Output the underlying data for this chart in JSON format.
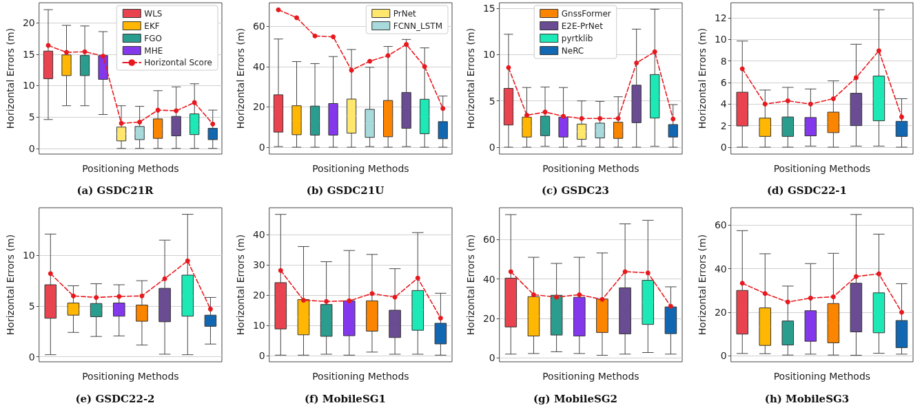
{
  "chart_data": [
    {
      "type": "box",
      "title": "(a) GSDC21R",
      "xlabel": "Positioning Methods",
      "ylabel": "Horizontal Errors (m)",
      "categories": [
        null,
        null,
        null,
        null,
        null,
        null,
        null,
        null,
        null,
        null
      ],
      "ylim": [
        -0.9,
        23.2
      ],
      "yticks": [
        0,
        5,
        10,
        15,
        20
      ],
      "grid": "y",
      "legend": "top right",
      "marker": "circle",
      "line_style": "dashed",
      "series": [
        {
          "name": "WLS",
          "color": "#e8434f",
          "boxes": [
            {
              "low": 4.6,
              "q1": 11.1,
              "median": 13.3,
              "q3": 15.5,
              "high": 22.1
            },
            null,
            null,
            null,
            null,
            null,
            null,
            null,
            null,
            null
          ]
        },
        {
          "name": "EKF",
          "color": "#ffb703",
          "boxes": [
            null,
            {
              "low": 6.8,
              "q1": 11.6,
              "median": 13.2,
              "q3": 14.9,
              "high": 19.6
            },
            null,
            null,
            null,
            null,
            null,
            null,
            null,
            null
          ]
        },
        {
          "name": "FGO",
          "color": "#2a9d8f",
          "boxes": [
            null,
            null,
            {
              "low": 6.8,
              "q1": 11.6,
              "median": 13.2,
              "q3": 14.8,
              "high": 19.5
            },
            null,
            null,
            null,
            null,
            null,
            null,
            null
          ]
        },
        {
          "name": "MHE",
          "color": "#8338ec",
          "boxes": [
            null,
            null,
            null,
            {
              "low": 5.4,
              "q1": 11.0,
              "median": 12.9,
              "q3": 14.8,
              "high": 18.6
            },
            null,
            null,
            null,
            null,
            null,
            null
          ]
        },
        {
          "color": "#ffe66d",
          "boxes": [
            null,
            null,
            null,
            null,
            {
              "low": 0,
              "q1": 1.2,
              "median": 2.3,
              "q3": 3.4,
              "high": 6.8
            },
            null,
            null,
            null,
            null,
            null
          ]
        },
        {
          "color": "#a8dadc",
          "boxes": [
            null,
            null,
            null,
            null,
            null,
            {
              "low": 0,
              "q1": 1.4,
              "median": 2.4,
              "q3": 3.5,
              "high": 6.7
            },
            null,
            null,
            null,
            null
          ]
        },
        {
          "color": "#fb8500",
          "boxes": [
            null,
            null,
            null,
            null,
            null,
            null,
            {
              "low": 0,
              "q1": 1.6,
              "median": 3.1,
              "q3": 4.7,
              "high": 9.2
            },
            null,
            null,
            null
          ]
        },
        {
          "color": "#6a4c93",
          "boxes": [
            null,
            null,
            null,
            null,
            null,
            null,
            null,
            {
              "low": 0,
              "q1": 2.0,
              "median": 3.5,
              "q3": 5.1,
              "high": 9.8
            },
            null,
            null
          ]
        },
        {
          "color": "#1de9b6",
          "boxes": [
            null,
            null,
            null,
            null,
            null,
            null,
            null,
            null,
            {
              "low": 0,
              "q1": 2.2,
              "median": 3.8,
              "q3": 5.5,
              "high": 10.3
            },
            null
          ]
        },
        {
          "color": "#1167b1",
          "boxes": [
            null,
            null,
            null,
            null,
            null,
            null,
            null,
            null,
            null,
            {
              "low": 0,
              "q1": 1.4,
              "median": 2.3,
              "q3": 3.2,
              "high": 6.1
            }
          ]
        },
        {
          "name": "Horizontal Score",
          "type": "line",
          "color": "#e8191e",
          "values": [
            16.4,
            15.3,
            15.4,
            14.7,
            4.0,
            4.2,
            6.1,
            6.0,
            7.3,
            3.9
          ]
        }
      ]
    },
    {
      "type": "box",
      "title": "(b) GSDC21U",
      "xlabel": "Positioning Methods",
      "ylabel": "Horizontal Errors (m)",
      "categories": [
        null,
        null,
        null,
        null,
        null,
        null,
        null,
        null,
        null,
        null
      ],
      "ylim": [
        -3.4,
        71.7
      ],
      "yticks": [
        0,
        20,
        40,
        60
      ],
      "grid": "y",
      "legend": "top right",
      "marker": "circle",
      "line_style": "dashed",
      "series": [
        {
          "color": "#e8434f",
          "boxes": [
            {
              "low": 0.3,
              "q1": 7.5,
              "median": 16.7,
              "q3": 26.0,
              "high": 53.7
            },
            null,
            null,
            null,
            null,
            null,
            null,
            null,
            null,
            null
          ]
        },
        {
          "color": "#ffb703",
          "boxes": [
            null,
            {
              "low": 0,
              "q1": 6.2,
              "median": 13.4,
              "q3": 20.6,
              "high": 42.5
            },
            null,
            null,
            null,
            null,
            null,
            null,
            null,
            null
          ]
        },
        {
          "color": "#2a9d8f",
          "boxes": [
            null,
            null,
            {
              "low": 0,
              "q1": 6.0,
              "median": 13.2,
              "q3": 20.4,
              "high": 41.5
            },
            null,
            null,
            null,
            null,
            null,
            null,
            null
          ]
        },
        {
          "color": "#8338ec",
          "boxes": [
            null,
            null,
            null,
            {
              "low": 0,
              "q1": 6.0,
              "median": 13.8,
              "q3": 21.7,
              "high": 45.0
            },
            null,
            null,
            null,
            null,
            null,
            null
          ]
        },
        {
          "name": "PrNet",
          "color": "#ffe66d",
          "boxes": [
            null,
            null,
            null,
            null,
            {
              "low": 0,
              "q1": 7.0,
              "median": 15.4,
              "q3": 23.9,
              "high": 48.5
            },
            null,
            null,
            null,
            null,
            null
          ]
        },
        {
          "name": "FCNN_LSTM",
          "color": "#a8dadc",
          "boxes": [
            null,
            null,
            null,
            null,
            null,
            {
              "low": 0.3,
              "q1": 4.9,
              "median": 11.8,
              "q3": 18.8,
              "high": 39.7
            },
            null,
            null,
            null,
            null
          ]
        },
        {
          "color": "#fb8500",
          "boxes": [
            null,
            null,
            null,
            null,
            null,
            null,
            {
              "low": 0,
              "q1": 5.2,
              "median": 14.2,
              "q3": 23.2,
              "high": 50.0
            },
            null,
            null,
            null
          ]
        },
        {
          "color": "#6a4c93",
          "boxes": [
            null,
            null,
            null,
            null,
            null,
            null,
            null,
            {
              "low": 0.3,
              "q1": 9.4,
              "median": 18.3,
              "q3": 27.2,
              "high": 53.5
            },
            null,
            null
          ]
        },
        {
          "color": "#1de9b6",
          "boxes": [
            null,
            null,
            null,
            null,
            null,
            null,
            null,
            null,
            {
              "low": 0,
              "q1": 6.7,
              "median": 15.2,
              "q3": 23.8,
              "high": 49.3
            },
            null
          ]
        },
        {
          "color": "#1167b1",
          "boxes": [
            null,
            null,
            null,
            null,
            null,
            null,
            null,
            null,
            null,
            {
              "low": 0,
              "q1": 4.2,
              "median": 8.4,
              "q3": 12.7,
              "high": 25.4
            }
          ]
        },
        {
          "type": "line",
          "color": "#e8191e",
          "values": [
            68.2,
            64.3,
            55.2,
            54.8,
            38.2,
            42.7,
            45.5,
            51.0,
            40.0,
            19.2
          ]
        }
      ]
    },
    {
      "type": "box",
      "title": "(c) GSDC23",
      "xlabel": "Positioning Methods",
      "ylabel": "Horizontal Errors (m)",
      "categories": [
        null,
        null,
        null,
        null,
        null,
        null,
        null,
        null,
        null,
        null
      ],
      "ylim": [
        -0.74,
        15.6
      ],
      "yticks": [
        0,
        5,
        10,
        15
      ],
      "grid": "y",
      "legend": "top",
      "marker": "circle",
      "line_style": "dashed",
      "series": [
        {
          "color": "#e8434f",
          "boxes": [
            {
              "low": 0,
              "q1": 2.4,
              "median": 4.4,
              "q3": 6.35,
              "high": 12.2
            },
            null,
            null,
            null,
            null,
            null,
            null,
            null,
            null,
            null
          ]
        },
        {
          "color": "#ffb703",
          "boxes": [
            null,
            {
              "low": 0,
              "q1": 1.1,
              "median": 2.2,
              "q3": 3.25,
              "high": 6.45
            },
            null,
            null,
            null,
            null,
            null,
            null,
            null,
            null
          ]
        },
        {
          "color": "#2a9d8f",
          "boxes": [
            null,
            null,
            {
              "low": 0.1,
              "q1": 1.25,
              "median": 2.3,
              "q3": 3.35,
              "high": 6.5
            },
            null,
            null,
            null,
            null,
            null,
            null,
            null
          ]
        },
        {
          "color": "#8338ec",
          "boxes": [
            null,
            null,
            null,
            {
              "low": 0,
              "q1": 1.1,
              "median": 2.2,
              "q3": 3.25,
              "high": 6.45
            },
            null,
            null,
            null,
            null,
            null,
            null
          ]
        },
        {
          "color": "#ffe66d",
          "boxes": [
            null,
            null,
            null,
            null,
            {
              "low": 0.1,
              "q1": 0.85,
              "median": 1.7,
              "q3": 2.5,
              "high": 5.0
            },
            null,
            null,
            null,
            null,
            null
          ]
        },
        {
          "color": "#a8dadc",
          "boxes": [
            null,
            null,
            null,
            null,
            null,
            {
              "low": 0,
              "q1": 1.0,
              "median": 1.8,
              "q3": 2.6,
              "high": 4.95
            },
            null,
            null,
            null,
            null
          ]
        },
        {
          "name": "GnssFormer",
          "color": "#fb8500",
          "boxes": [
            null,
            null,
            null,
            null,
            null,
            null,
            {
              "low": 0,
              "q1": 0.95,
              "median": 1.8,
              "q3": 2.7,
              "high": 5.45
            },
            null,
            null,
            null
          ]
        },
        {
          "name": "E2E-PrNet",
          "color": "#6a4c93",
          "boxes": [
            null,
            null,
            null,
            null,
            null,
            null,
            null,
            {
              "low": 0,
              "q1": 2.65,
              "median": 4.7,
              "q3": 6.7,
              "high": 12.75
            },
            null,
            null
          ]
        },
        {
          "name": "pyrtklib",
          "color": "#1de9b6",
          "boxes": [
            null,
            null,
            null,
            null,
            null,
            null,
            null,
            null,
            {
              "low": 0.1,
              "q1": 3.15,
              "median": 5.5,
              "q3": 7.85,
              "high": 14.9
            },
            null
          ]
        },
        {
          "name": "NeRC",
          "color": "#1167b1",
          "boxes": [
            null,
            null,
            null,
            null,
            null,
            null,
            null,
            null,
            null,
            {
              "low": 0,
              "q1": 1.1,
              "median": 1.8,
              "q3": 2.45,
              "high": 4.6
            }
          ]
        },
        {
          "type": "line",
          "color": "#e8191e",
          "values": [
            8.6,
            3.45,
            3.8,
            3.35,
            3.1,
            3.1,
            3.1,
            9.1,
            10.3,
            3.05
          ]
        }
      ]
    },
    {
      "type": "box",
      "title": "(d) GSDC22-1",
      "xlabel": "Positioning Methods",
      "ylabel": "Horizontal Errors (m)",
      "categories": [
        null,
        null,
        null,
        null,
        null,
        null,
        null,
        null
      ],
      "ylim": [
        -0.64,
        13.4
      ],
      "yticks": [
        0,
        2,
        4,
        6,
        8,
        10,
        12
      ],
      "grid": "y",
      "marker": "circle",
      "line_style": "dashed",
      "series": [
        {
          "color": "#e8434f",
          "boxes": [
            {
              "low": 0,
              "q1": 1.97,
              "median": 3.5,
              "q3": 5.1,
              "high": 9.85
            },
            null,
            null,
            null,
            null,
            null,
            null,
            null
          ]
        },
        {
          "color": "#ffb703",
          "boxes": [
            null,
            {
              "low": 0,
              "q1": 1.0,
              "median": 1.85,
              "q3": 2.7,
              "high": 5.3
            },
            null,
            null,
            null,
            null,
            null,
            null
          ]
        },
        {
          "color": "#2a9d8f",
          "boxes": [
            null,
            null,
            {
              "low": 0,
              "q1": 1.0,
              "median": 1.9,
              "q3": 2.8,
              "high": 5.55
            },
            null,
            null,
            null,
            null,
            null
          ]
        },
        {
          "color": "#8338ec",
          "boxes": [
            null,
            null,
            null,
            {
              "low": 0.1,
              "q1": 1.05,
              "median": 1.9,
              "q3": 2.75,
              "high": 5.4
            },
            null,
            null,
            null,
            null
          ]
        },
        {
          "color": "#fb8500",
          "boxes": [
            null,
            null,
            null,
            null,
            {
              "low": 0,
              "q1": 1.35,
              "median": 2.3,
              "q3": 3.25,
              "high": 6.15
            },
            null,
            null,
            null
          ]
        },
        {
          "color": "#6a4c93",
          "boxes": [
            null,
            null,
            null,
            null,
            null,
            {
              "low": 0.1,
              "q1": 2.0,
              "median": 3.5,
              "q3": 5.0,
              "high": 9.55
            },
            null,
            null
          ]
        },
        {
          "color": "#1de9b6",
          "boxes": [
            null,
            null,
            null,
            null,
            null,
            null,
            {
              "low": 0.1,
              "q1": 2.45,
              "median": 4.5,
              "q3": 6.6,
              "high": 12.75
            },
            null
          ]
        },
        {
          "color": "#1167b1",
          "boxes": [
            null,
            null,
            null,
            null,
            null,
            null,
            null,
            {
              "low": 0,
              "q1": 1.0,
              "median": 1.7,
              "q3": 2.4,
              "high": 4.5
            }
          ]
        },
        {
          "type": "line",
          "color": "#e8191e",
          "values": [
            7.27,
            4.0,
            4.3,
            4.0,
            4.5,
            6.45,
            8.95,
            2.8
          ]
        }
      ]
    },
    {
      "type": "box",
      "title": "(e) GSDC22-2",
      "xlabel": "Positioning Methods",
      "ylabel": "Horizontal Errors (m)",
      "categories": [
        null,
        null,
        null,
        null,
        null,
        null,
        null,
        null
      ],
      "ylim": [
        -0.5,
        14.7
      ],
      "yticks": [
        0,
        5,
        10
      ],
      "grid": "y",
      "marker": "circle",
      "line_style": "dashed",
      "series": [
        {
          "color": "#e8434f",
          "boxes": [
            {
              "low": 0.2,
              "q1": 3.8,
              "median": 5.45,
              "q3": 7.1,
              "high": 12.1
            },
            null,
            null,
            null,
            null,
            null,
            null,
            null
          ]
        },
        {
          "color": "#ffb703",
          "boxes": [
            null,
            {
              "low": 2.4,
              "q1": 4.1,
              "median": 4.7,
              "q3": 5.3,
              "high": 7.0
            },
            null,
            null,
            null,
            null,
            null,
            null
          ]
        },
        {
          "color": "#2a9d8f",
          "boxes": [
            null,
            null,
            {
              "low": 2.0,
              "q1": 3.95,
              "median": 4.6,
              "q3": 5.25,
              "high": 7.2
            },
            null,
            null,
            null,
            null,
            null
          ]
        },
        {
          "color": "#8338ec",
          "boxes": [
            null,
            null,
            null,
            {
              "low": 2.05,
              "q1": 4.0,
              "median": 4.65,
              "q3": 5.3,
              "high": 7.1
            },
            null,
            null,
            null,
            null
          ]
        },
        {
          "color": "#fb8500",
          "boxes": [
            null,
            null,
            null,
            null,
            {
              "low": 1.15,
              "q1": 3.5,
              "median": 4.3,
              "q3": 5.1,
              "high": 7.5
            },
            null,
            null,
            null
          ]
        },
        {
          "color": "#6a4c93",
          "boxes": [
            null,
            null,
            null,
            null,
            null,
            {
              "low": 0.25,
              "q1": 3.45,
              "median": 5.1,
              "q3": 6.75,
              "high": 11.5
            },
            null,
            null
          ]
        },
        {
          "color": "#1de9b6",
          "boxes": [
            null,
            null,
            null,
            null,
            null,
            null,
            {
              "low": 0.2,
              "q1": 4.0,
              "median": 6.0,
              "q3": 8.05,
              "high": 14.05
            },
            null
          ]
        },
        {
          "color": "#1167b1",
          "boxes": [
            null,
            null,
            null,
            null,
            null,
            null,
            null,
            {
              "low": 1.25,
              "q1": 3.0,
              "median": 3.55,
              "q3": 4.1,
              "high": 5.85
            }
          ]
        },
        {
          "type": "line",
          "color": "#e8191e",
          "values": [
            8.2,
            6.0,
            5.85,
            5.95,
            6.0,
            7.7,
            9.45,
            4.7
          ]
        }
      ]
    },
    {
      "type": "box",
      "title": "(f) MobileSG1",
      "xlabel": "Positioning Methods",
      "ylabel": "Horizontal Errors (m)",
      "categories": [
        null,
        null,
        null,
        null,
        null,
        null,
        null,
        null
      ],
      "ylim": [
        -2.0,
        48.8
      ],
      "yticks": [
        0,
        10,
        20,
        30,
        40
      ],
      "grid": "y",
      "marker": "circle",
      "line_style": "dashed",
      "series": [
        {
          "color": "#e8434f",
          "boxes": [
            {
              "low": 0.2,
              "q1": 8.85,
              "median": 16.5,
              "q3": 24.1,
              "high": 46.6
            },
            null,
            null,
            null,
            null,
            null,
            null,
            null
          ]
        },
        {
          "color": "#ffb703",
          "boxes": [
            null,
            {
              "low": 0.2,
              "q1": 6.9,
              "median": 12.7,
              "q3": 18.5,
              "high": 36.0
            },
            null,
            null,
            null,
            null,
            null,
            null
          ]
        },
        {
          "color": "#2a9d8f",
          "boxes": [
            null,
            null,
            {
              "low": 0.5,
              "q1": 6.4,
              "median": 11.6,
              "q3": 16.9,
              "high": 31.0
            },
            null,
            null,
            null,
            null,
            null
          ]
        },
        {
          "color": "#8338ec",
          "boxes": [
            null,
            null,
            null,
            {
              "low": 0.2,
              "q1": 6.6,
              "median": 12.3,
              "q3": 18.1,
              "high": 34.7
            },
            null,
            null,
            null,
            null
          ]
        },
        {
          "color": "#fb8500",
          "boxes": [
            null,
            null,
            null,
            null,
            {
              "low": 1.2,
              "q1": 8.1,
              "median": 13.1,
              "q3": 18.1,
              "high": 33.4
            },
            null,
            null,
            null
          ]
        },
        {
          "color": "#6a4c93",
          "boxes": [
            null,
            null,
            null,
            null,
            null,
            {
              "low": 0.5,
              "q1": 6.0,
              "median": 10.5,
              "q3": 15.0,
              "high": 28.7
            },
            null,
            null
          ]
        },
        {
          "color": "#1de9b6",
          "boxes": [
            null,
            null,
            null,
            null,
            null,
            null,
            {
              "low": 0.5,
              "q1": 8.4,
              "median": 15.0,
              "q3": 21.5,
              "high": 40.6
            },
            null
          ]
        },
        {
          "color": "#1167b1",
          "boxes": [
            null,
            null,
            null,
            null,
            null,
            null,
            null,
            {
              "low": 0.2,
              "q1": 3.9,
              "median": 7.3,
              "q3": 10.7,
              "high": 20.6
            }
          ]
        },
        {
          "type": "line",
          "color": "#e8191e",
          "values": [
            28.1,
            18.3,
            17.9,
            18.1,
            20.5,
            19.3,
            25.6,
            12.4
          ]
        }
      ]
    },
    {
      "type": "box",
      "title": "(g) MobileSG2",
      "xlabel": "Positioning Methods",
      "ylabel": "Horizontal Errors (m)",
      "categories": [
        null,
        null,
        null,
        null,
        null,
        null,
        null,
        null
      ],
      "ylim": [
        -2.1,
        76.2
      ],
      "yticks": [
        0,
        20,
        40,
        60
      ],
      "grid": "y",
      "marker": "circle",
      "line_style": "dashed",
      "series": [
        {
          "color": "#e8434f",
          "boxes": [
            {
              "low": 1.8,
              "q1": 15.6,
              "median": 28.0,
              "q3": 40.4,
              "high": 72.7
            },
            null,
            null,
            null,
            null,
            null,
            null,
            null
          ]
        },
        {
          "color": "#ffb703",
          "boxes": [
            null,
            {
              "low": 2.1,
              "q1": 11.0,
              "median": 21.0,
              "q3": 31.0,
              "high": 51.0
            },
            null,
            null,
            null,
            null,
            null,
            null
          ]
        },
        {
          "color": "#2a9d8f",
          "boxes": [
            null,
            null,
            {
              "low": 3.0,
              "q1": 11.5,
              "median": 21.6,
              "q3": 31.7,
              "high": 47.9
            },
            null,
            null,
            null,
            null,
            null
          ]
        },
        {
          "color": "#8338ec",
          "boxes": [
            null,
            null,
            null,
            {
              "low": 2.1,
              "q1": 11.0,
              "median": 20.8,
              "q3": 30.7,
              "high": 51.0
            },
            null,
            null,
            null,
            null
          ]
        },
        {
          "color": "#fb8500",
          "boxes": [
            null,
            null,
            null,
            null,
            {
              "low": 1.2,
              "q1": 12.8,
              "median": 21.3,
              "q3": 29.8,
              "high": 53.2
            },
            null,
            null,
            null
          ]
        },
        {
          "color": "#6a4c93",
          "boxes": [
            null,
            null,
            null,
            null,
            null,
            {
              "low": 1.8,
              "q1": 12.1,
              "median": 23.8,
              "q3": 35.5,
              "high": 68.0
            },
            null,
            null
          ]
        },
        {
          "color": "#1de9b6",
          "boxes": [
            null,
            null,
            null,
            null,
            null,
            null,
            {
              "low": 2.6,
              "q1": 16.9,
              "median": 28.1,
              "q3": 39.3,
              "high": 69.8
            },
            null
          ]
        },
        {
          "color": "#1167b1",
          "boxes": [
            null,
            null,
            null,
            null,
            null,
            null,
            null,
            {
              "low": 1.8,
              "q1": 12.2,
              "median": 19.0,
              "q3": 25.8,
              "high": 36.0
            }
          ]
        },
        {
          "type": "line",
          "color": "#e8191e",
          "values": [
            43.7,
            32.0,
            30.8,
            32.0,
            29.6,
            43.7,
            43.1,
            26.1
          ]
        }
      ]
    },
    {
      "type": "box",
      "title": "(h) MobileSG3",
      "xlabel": "Positioning Methods",
      "ylabel": "Horizontal Errors (m)",
      "categories": [
        null,
        null,
        null,
        null,
        null,
        null,
        null,
        null
      ],
      "ylim": [
        -2.7,
        67.9
      ],
      "yticks": [
        0,
        20,
        40,
        60
      ],
      "grid": "y",
      "marker": "circle",
      "line_style": "dashed",
      "series": [
        {
          "color": "#e8434f",
          "boxes": [
            {
              "low": 1.1,
              "q1": 10.0,
              "median": 20.0,
              "q3": 30.0,
              "high": 57.4
            },
            null,
            null,
            null,
            null,
            null,
            null,
            null
          ]
        },
        {
          "color": "#ffb703",
          "boxes": [
            null,
            {
              "low": 1.0,
              "q1": 4.8,
              "median": 13.4,
              "q3": 22.0,
              "high": 46.8
            },
            null,
            null,
            null,
            null,
            null,
            null
          ]
        },
        {
          "color": "#2a9d8f",
          "boxes": [
            null,
            null,
            {
              "low": 0.4,
              "q1": 5.0,
              "median": 10.5,
              "q3": 16.0,
              "high": 32.0
            },
            null,
            null,
            null,
            null,
            null
          ]
        },
        {
          "color": "#8338ec",
          "boxes": [
            null,
            null,
            null,
            {
              "low": 0.8,
              "q1": 6.7,
              "median": 13.7,
              "q3": 20.7,
              "high": 42.3
            },
            null,
            null,
            null,
            null
          ]
        },
        {
          "color": "#fb8500",
          "boxes": [
            null,
            null,
            null,
            null,
            {
              "low": 0.4,
              "q1": 6.0,
              "median": 15.0,
              "q3": 24.0,
              "high": 47.0
            },
            null,
            null,
            null
          ]
        },
        {
          "color": "#6a4c93",
          "boxes": [
            null,
            null,
            null,
            null,
            null,
            {
              "low": 0.3,
              "q1": 11.0,
              "median": 22.2,
              "q3": 33.3,
              "high": 64.8
            },
            null,
            null
          ]
        },
        {
          "color": "#1de9b6",
          "boxes": [
            null,
            null,
            null,
            null,
            null,
            null,
            {
              "low": 1.2,
              "q1": 10.6,
              "median": 19.8,
              "q3": 28.9,
              "high": 55.8
            },
            null
          ]
        },
        {
          "color": "#1167b1",
          "boxes": [
            null,
            null,
            null,
            null,
            null,
            null,
            null,
            {
              "low": 0.8,
              "q1": 3.8,
              "median": 10.0,
              "q3": 16.2,
              "high": 33.1
            }
          ]
        },
        {
          "type": "line",
          "color": "#e8191e",
          "values": [
            33.3,
            28.6,
            24.7,
            26.5,
            27.1,
            36.4,
            37.6,
            20.0
          ]
        }
      ]
    }
  ]
}
